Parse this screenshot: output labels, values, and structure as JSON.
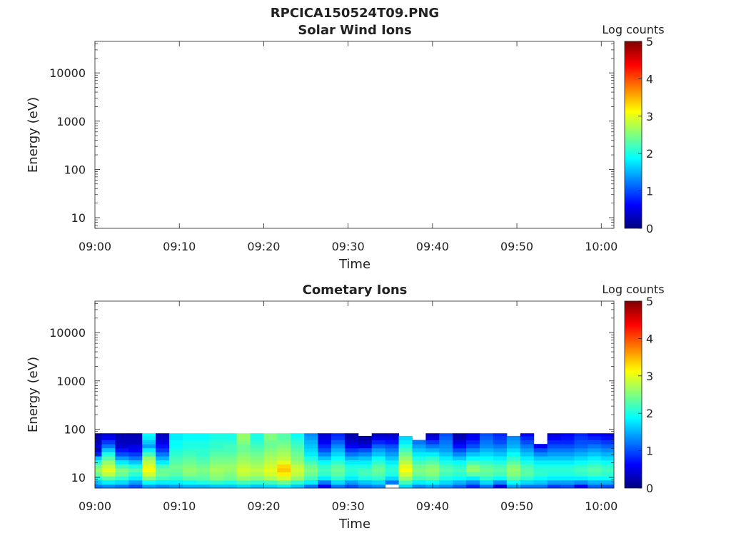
{
  "figure_title": "RPCICA150524T09.PNG",
  "colorbar_colors": [
    "#00007f",
    "#0000ff",
    "#007fff",
    "#00ffff",
    "#7fff7f",
    "#ffff00",
    "#ff7f00",
    "#ff0000",
    "#7f0000"
  ],
  "chart_data": [
    {
      "type": "heatmap",
      "title": "Solar Wind Ions",
      "xlabel": "Time",
      "ylabel": "Energy (eV)",
      "x_ticks": [
        "09:00",
        "09:10",
        "09:20",
        "09:30",
        "09:40",
        "09:50",
        "10:00"
      ],
      "x_range_minutes": [
        0,
        61.5
      ],
      "y_scale": "log",
      "y_ticks": [
        10,
        100,
        1000,
        10000
      ],
      "y_tick_labels": [
        "10",
        "100",
        "1000",
        "10000"
      ],
      "y_range": [
        6,
        45000
      ],
      "colorbar_label": "Log counts",
      "colorbar_ticks": [
        0,
        1,
        2,
        3,
        4,
        5
      ],
      "colorbar_range": [
        0,
        5
      ],
      "energy_bins": [],
      "columns": []
    },
    {
      "type": "heatmap",
      "title": "Cometary Ions",
      "xlabel": "Time",
      "ylabel": "Energy (eV)",
      "x_ticks": [
        "09:00",
        "09:10",
        "09:20",
        "09:30",
        "09:40",
        "09:50",
        "10:00"
      ],
      "x_range_minutes": [
        0,
        61.5
      ],
      "y_scale": "log",
      "y_ticks": [
        10,
        100,
        1000,
        10000
      ],
      "y_tick_labels": [
        "10",
        "100",
        "1000",
        "10000"
      ],
      "y_range": [
        6,
        45000
      ],
      "colorbar_label": "Log counts",
      "colorbar_ticks": [
        0,
        1,
        2,
        3,
        4,
        5
      ],
      "colorbar_range": [
        0,
        5
      ],
      "energy_bins": [
        6,
        7.2,
        8.8,
        10.6,
        12.9,
        15.6,
        18.9,
        22.9,
        27.7,
        33.6,
        40.7,
        49.3,
        59.7,
        72.3,
        82
      ],
      "columns": [
        {
          "t0": 0,
          "t1": 0.8,
          "v": [
            1.2,
            1.6,
            2.0,
            2.4,
            2.6,
            2.4,
            2.0,
            1.6,
            0.8,
            0.4,
            0.5,
            0.3,
            0.3,
            0.2
          ]
        },
        {
          "t0": 0.8,
          "t1": 2.4,
          "v": [
            1.3,
            1.8,
            2.3,
            2.8,
            3.0,
            2.8,
            2.6,
            2.3,
            2.0,
            1.6,
            1.2,
            0.9,
            0.6,
            0.4
          ]
        },
        {
          "t0": 2.4,
          "t1": 4.0,
          "v": [
            1.2,
            1.7,
            2.1,
            2.4,
            2.5,
            2.2,
            1.8,
            1.4,
            1.0,
            0.7,
            0.4,
            0.3,
            0.3,
            0.2
          ]
        },
        {
          "t0": 4.0,
          "t1": 5.6,
          "v": [
            1.0,
            1.4,
            1.8,
            2.1,
            2.3,
            2.0,
            1.6,
            1.2,
            0.9,
            0.6,
            0.5,
            0.3,
            0.3,
            0.2
          ]
        },
        {
          "t0": 5.6,
          "t1": 7.2,
          "v": [
            1.4,
            1.9,
            2.5,
            2.9,
            3.1,
            3.0,
            2.8,
            2.6,
            2.2,
            1.8,
            1.4,
            1.6,
            1.8,
            1.9
          ]
        },
        {
          "t0": 7.2,
          "t1": 8.8,
          "v": [
            1.3,
            1.8,
            2.2,
            2.4,
            2.4,
            2.2,
            1.8,
            1.5,
            1.2,
            0.9,
            0.7,
            0.5,
            0.4,
            0.3
          ]
        },
        {
          "t0": 8.8,
          "t1": 10.4,
          "v": [
            1.4,
            1.8,
            2.1,
            2.3,
            2.4,
            2.4,
            2.3,
            2.2,
            2.1,
            2.0,
            1.9,
            1.9,
            1.8,
            1.8
          ]
        },
        {
          "t0": 10.4,
          "t1": 12.0,
          "v": [
            1.5,
            1.9,
            2.3,
            2.5,
            2.6,
            2.5,
            2.4,
            2.3,
            2.2,
            2.1,
            2.0,
            2.0,
            1.9,
            1.9
          ]
        },
        {
          "t0": 12.0,
          "t1": 13.6,
          "v": [
            1.5,
            2.0,
            2.3,
            2.4,
            2.5,
            2.4,
            2.3,
            2.2,
            2.1,
            2.1,
            2.0,
            2.0,
            1.9,
            1.9
          ]
        },
        {
          "t0": 13.6,
          "t1": 15.2,
          "v": [
            1.6,
            2.1,
            2.5,
            2.6,
            2.7,
            2.6,
            2.5,
            2.4,
            2.3,
            2.2,
            2.1,
            2.1,
            2.0,
            2.0
          ]
        },
        {
          "t0": 15.2,
          "t1": 16.8,
          "v": [
            1.6,
            2.0,
            2.4,
            2.5,
            2.6,
            2.6,
            2.5,
            2.4,
            2.3,
            2.2,
            2.2,
            2.1,
            2.0,
            2.0
          ]
        },
        {
          "t0": 16.8,
          "t1": 18.4,
          "v": [
            1.7,
            2.2,
            2.6,
            2.8,
            2.9,
            2.8,
            2.7,
            2.6,
            2.5,
            2.4,
            2.4,
            2.5,
            2.6,
            2.6
          ]
        },
        {
          "t0": 18.4,
          "t1": 20.0,
          "v": [
            1.6,
            2.1,
            2.5,
            2.7,
            2.8,
            2.7,
            2.6,
            2.5,
            2.4,
            2.3,
            2.2,
            2.1,
            2.0,
            2.0
          ]
        },
        {
          "t0": 20.0,
          "t1": 21.6,
          "v": [
            1.7,
            2.2,
            2.7,
            2.9,
            3.0,
            2.9,
            2.8,
            2.7,
            2.6,
            2.5,
            2.4,
            2.4,
            2.5,
            2.5
          ]
        },
        {
          "t0": 21.6,
          "t1": 23.2,
          "v": [
            1.8,
            2.4,
            2.9,
            3.2,
            3.4,
            3.3,
            3.0,
            2.8,
            2.7,
            2.6,
            2.5,
            2.4,
            2.3,
            2.3
          ]
        },
        {
          "t0": 23.2,
          "t1": 24.8,
          "v": [
            1.6,
            2.1,
            2.6,
            2.8,
            2.9,
            2.8,
            2.6,
            2.5,
            2.4,
            2.3,
            2.2,
            2.1,
            2.0,
            1.9
          ]
        },
        {
          "t0": 24.8,
          "t1": 26.4,
          "v": [
            1.2,
            1.8,
            2.2,
            2.4,
            2.5,
            2.4,
            2.2,
            2.0,
            1.8,
            1.7,
            1.6,
            1.5,
            1.4,
            1.3
          ]
        },
        {
          "t0": 26.4,
          "t1": 28.0,
          "v": [
            0.6,
            1.2,
            1.8,
            2.1,
            2.2,
            2.1,
            1.9,
            1.6,
            1.3,
            1.0,
            0.8,
            0.6,
            0.5,
            0.4
          ]
        },
        {
          "t0": 28.0,
          "t1": 29.6,
          "v": [
            1.2,
            1.7,
            2.1,
            2.3,
            2.4,
            2.3,
            2.1,
            1.9,
            1.7,
            1.5,
            1.3,
            1.1,
            0.9,
            0.8
          ]
        },
        {
          "t0": 29.6,
          "t1": 31.2,
          "v": [
            1.0,
            1.4,
            1.8,
            2.0,
            2.1,
            2.0,
            1.8,
            1.5,
            1.2,
            0.9,
            0.6,
            0.4,
            0.3,
            0.2
          ]
        },
        {
          "t0": 31.2,
          "t1": 32.8,
          "v": [
            1.2,
            1.6,
            2.0,
            2.2,
            2.2,
            2.0,
            1.8,
            1.6,
            1.3,
            1.0,
            0.5,
            0.3,
            0.2,
            null
          ]
        },
        {
          "t0": 32.8,
          "t1": 34.4,
          "v": [
            1.3,
            1.7,
            2.1,
            2.3,
            2.4,
            2.3,
            2.1,
            1.9,
            1.6,
            1.4,
            1.1,
            0.8,
            0.5,
            0.3
          ]
        },
        {
          "t0": 34.4,
          "t1": 36.0,
          "v": [
            null,
            1.2,
            1.7,
            2.0,
            2.1,
            2.0,
            1.8,
            1.6,
            1.4,
            1.2,
            1.0,
            0.7,
            0.5,
            0.3
          ]
        },
        {
          "t0": 36.0,
          "t1": 37.6,
          "v": [
            1.7,
            2.2,
            2.6,
            2.9,
            3.1,
            3.0,
            2.8,
            2.6,
            2.4,
            2.2,
            2.0,
            1.8,
            1.7,
            null
          ]
        },
        {
          "t0": 37.6,
          "t1": 39.2,
          "v": [
            1.3,
            1.8,
            2.2,
            2.4,
            2.5,
            2.4,
            2.2,
            2.0,
            1.8,
            1.6,
            1.4,
            1.2,
            null,
            null
          ]
        },
        {
          "t0": 39.2,
          "t1": 40.8,
          "v": [
            1.4,
            1.9,
            2.3,
            2.5,
            2.6,
            2.5,
            2.3,
            2.1,
            1.8,
            1.5,
            1.2,
            0.9,
            0.5,
            0.3
          ]
        },
        {
          "t0": 40.8,
          "t1": 42.4,
          "v": [
            1.3,
            1.7,
            2.0,
            2.2,
            2.3,
            2.2,
            2.0,
            1.8,
            1.6,
            1.4,
            1.3,
            1.2,
            1.1,
            1.0
          ]
        },
        {
          "t0": 42.4,
          "t1": 44.0,
          "v": [
            1.1,
            1.5,
            1.9,
            2.1,
            2.2,
            2.1,
            1.9,
            1.6,
            1.3,
            1.0,
            0.7,
            0.5,
            0.3,
            0.2
          ]
        },
        {
          "t0": 44.0,
          "t1": 45.6,
          "v": [
            0.8,
            1.3,
            1.8,
            2.3,
            2.6,
            2.5,
            2.2,
            1.9,
            1.6,
            1.3,
            1.0,
            0.8,
            0.6,
            0.5
          ]
        },
        {
          "t0": 45.6,
          "t1": 47.2,
          "v": [
            1.2,
            1.7,
            2.1,
            2.3,
            2.4,
            2.3,
            2.1,
            1.9,
            1.7,
            1.5,
            1.3,
            1.2,
            1.1,
            1.0
          ]
        },
        {
          "t0": 47.2,
          "t1": 48.8,
          "v": [
            0.5,
            1.3,
            1.9,
            2.2,
            2.3,
            2.2,
            2.0,
            1.8,
            1.6,
            1.4,
            1.2,
            1.0,
            0.9,
            0.8
          ]
        },
        {
          "t0": 48.8,
          "t1": 50.4,
          "v": [
            1.4,
            1.9,
            2.3,
            2.5,
            2.6,
            2.5,
            2.3,
            2.1,
            1.9,
            1.7,
            1.5,
            1.4,
            1.3,
            null
          ]
        },
        {
          "t0": 50.4,
          "t1": 52.0,
          "v": [
            1.2,
            1.7,
            2.1,
            2.3,
            2.3,
            2.2,
            2.0,
            1.8,
            1.6,
            1.4,
            1.2,
            1.0,
            0.8,
            0.6
          ]
        },
        {
          "t0": 52.0,
          "t1": 53.6,
          "v": [
            1.2,
            1.6,
            1.9,
            2.1,
            2.1,
            2.0,
            1.8,
            1.6,
            1.3,
            1.0,
            0.6,
            null,
            null,
            null
          ]
        },
        {
          "t0": 53.6,
          "t1": 55.2,
          "v": [
            0.9,
            1.4,
            1.8,
            2.0,
            2.1,
            2.0,
            1.8,
            1.6,
            1.4,
            1.2,
            1.0,
            0.8,
            0.6,
            0.4
          ]
        },
        {
          "t0": 55.2,
          "t1": 56.8,
          "v": [
            1.0,
            1.4,
            1.8,
            2.0,
            2.1,
            2.0,
            1.8,
            1.6,
            1.4,
            1.2,
            1.0,
            0.8,
            0.7,
            0.6
          ]
        },
        {
          "t0": 56.8,
          "t1": 58.4,
          "v": [
            0.6,
            1.3,
            1.8,
            2.1,
            2.2,
            2.1,
            1.9,
            1.7,
            1.5,
            1.3,
            1.1,
            1.0,
            0.9,
            0.8
          ]
        },
        {
          "t0": 58.4,
          "t1": 60.0,
          "v": [
            1.1,
            1.5,
            1.9,
            2.2,
            2.3,
            2.2,
            2.0,
            1.8,
            1.6,
            1.4,
            1.2,
            1.0,
            0.8,
            0.6
          ]
        },
        {
          "t0": 60.0,
          "t1": 61.5,
          "v": [
            1.0,
            1.5,
            1.9,
            2.1,
            2.2,
            2.1,
            1.9,
            1.7,
            1.5,
            1.3,
            1.1,
            0.9,
            0.7,
            0.5
          ]
        }
      ]
    }
  ]
}
